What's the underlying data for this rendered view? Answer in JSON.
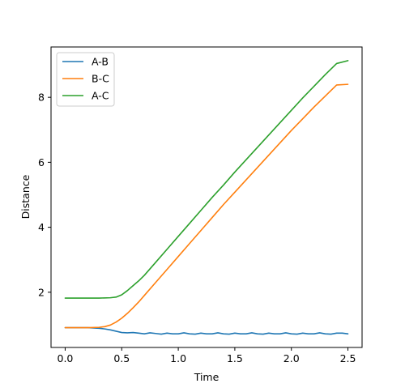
{
  "chart_data": {
    "type": "line",
    "title": "",
    "xlabel": "Time",
    "ylabel": "Distance",
    "xlim": [
      -0.125,
      2.625
    ],
    "ylim": [
      0.3,
      9.55
    ],
    "xticks": [
      0.0,
      0.5,
      1.0,
      1.5,
      2.0,
      2.5
    ],
    "xtick_labels": [
      "0.0",
      "0.5",
      "1.0",
      "1.5",
      "2.0",
      "2.5"
    ],
    "yticks": [
      2,
      4,
      6,
      8
    ],
    "ytick_labels": [
      "2",
      "4",
      "6",
      "8"
    ],
    "grid": false,
    "legend": "top-left",
    "series": [
      {
        "name": "A-B",
        "color": "#1f77b4",
        "x": [
          0.0,
          0.1,
          0.2,
          0.25,
          0.3,
          0.35,
          0.4,
          0.45,
          0.5,
          0.55,
          0.6,
          0.65,
          0.7,
          0.75,
          0.8,
          0.85,
          0.9,
          0.95,
          1.0,
          1.05,
          1.1,
          1.15,
          1.2,
          1.25,
          1.3,
          1.35,
          1.4,
          1.45,
          1.5,
          1.55,
          1.6,
          1.65,
          1.7,
          1.75,
          1.8,
          1.85,
          1.9,
          1.95,
          2.0,
          2.05,
          2.1,
          2.15,
          2.2,
          2.25,
          2.3,
          2.35,
          2.4,
          2.45,
          2.5
        ],
        "y": [
          0.91,
          0.91,
          0.91,
          0.9,
          0.89,
          0.87,
          0.84,
          0.8,
          0.76,
          0.75,
          0.76,
          0.74,
          0.72,
          0.75,
          0.73,
          0.71,
          0.74,
          0.72,
          0.72,
          0.75,
          0.72,
          0.71,
          0.74,
          0.72,
          0.72,
          0.75,
          0.72,
          0.71,
          0.74,
          0.72,
          0.72,
          0.75,
          0.72,
          0.71,
          0.74,
          0.72,
          0.72,
          0.75,
          0.72,
          0.71,
          0.74,
          0.72,
          0.72,
          0.75,
          0.72,
          0.71,
          0.74,
          0.74,
          0.72
        ]
      },
      {
        "name": "B-C",
        "color": "#ff7f0e",
        "x": [
          0.0,
          0.1,
          0.2,
          0.3,
          0.35,
          0.4,
          0.45,
          0.5,
          0.55,
          0.6,
          0.65,
          0.7,
          0.8,
          0.9,
          1.0,
          1.1,
          1.2,
          1.3,
          1.4,
          1.5,
          1.6,
          1.7,
          1.8,
          1.9,
          2.0,
          2.1,
          2.2,
          2.3,
          2.4,
          2.5
        ],
        "y": [
          0.91,
          0.91,
          0.91,
          0.92,
          0.94,
          0.99,
          1.08,
          1.2,
          1.35,
          1.52,
          1.7,
          1.9,
          2.3,
          2.7,
          3.1,
          3.5,
          3.9,
          4.3,
          4.7,
          5.08,
          5.46,
          5.84,
          6.22,
          6.6,
          6.98,
          7.34,
          7.7,
          8.04,
          8.38,
          8.4
        ]
      },
      {
        "name": "A-C",
        "color": "#2ca02c",
        "x": [
          0.0,
          0.1,
          0.2,
          0.3,
          0.4,
          0.45,
          0.5,
          0.55,
          0.6,
          0.65,
          0.7,
          0.8,
          0.9,
          1.0,
          1.1,
          1.2,
          1.3,
          1.4,
          1.5,
          1.6,
          1.7,
          1.8,
          1.9,
          2.0,
          2.1,
          2.2,
          2.3,
          2.4,
          2.5
        ],
        "y": [
          1.82,
          1.82,
          1.82,
          1.82,
          1.83,
          1.85,
          1.92,
          2.05,
          2.2,
          2.35,
          2.52,
          2.92,
          3.32,
          3.72,
          4.12,
          4.52,
          4.92,
          5.3,
          5.7,
          6.08,
          6.46,
          6.84,
          7.22,
          7.6,
          7.98,
          8.34,
          8.7,
          9.04,
          9.13
        ]
      }
    ]
  }
}
